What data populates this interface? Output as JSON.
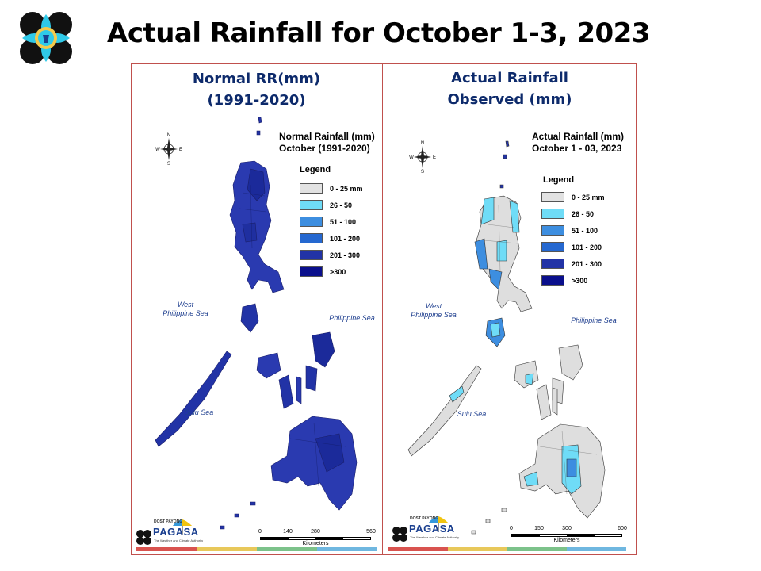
{
  "slide": {
    "title": "Actual Rainfall for October 1-3, 2023"
  },
  "headers": {
    "left": [
      "Normal RR(mm)",
      "(1991-2020)"
    ],
    "right": [
      "Actual Rainfall",
      "Observed (mm)"
    ]
  },
  "maps": [
    {
      "title_lines": [
        "Normal Rainfall (mm)",
        "October (1991-2020)"
      ],
      "legend_title": "Legend",
      "legend": [
        {
          "label": "0 - 25 mm",
          "color": "#e2e2e2"
        },
        {
          "label": "26 - 50",
          "color": "#6fdcf7"
        },
        {
          "label": "51 - 100",
          "color": "#3d8ee0"
        },
        {
          "label": "101 - 200",
          "color": "#2568d0"
        },
        {
          "label": "201 - 300",
          "color": "#2233a6"
        },
        {
          "label": ">300",
          "color": "#0a0f8c"
        }
      ],
      "seas": {
        "west": [
          "West",
          "Philippine Sea"
        ],
        "east": "Philippine Sea",
        "sulu": "Sulu Sea"
      },
      "compass": {
        "n": "N",
        "s": "S",
        "e": "E",
        "w": "W"
      },
      "scale": {
        "ticks": [
          "0",
          "140",
          "280",
          "560"
        ],
        "unit": "Kilometers"
      },
      "brand": "PAGASA",
      "brand_small": "DOST  PAYONG",
      "brand_tag": "The Weather and Climate Authority",
      "fill": "dark"
    },
    {
      "title_lines": [
        "Actual Rainfall (mm)",
        "October 1 - 03, 2023"
      ],
      "legend_title": "Legend",
      "legend": [
        {
          "label": "0 - 25 mm",
          "color": "#e2e2e2"
        },
        {
          "label": "26 - 50",
          "color": "#6fdcf7"
        },
        {
          "label": "51 - 100",
          "color": "#3d8ee0"
        },
        {
          "label": "101 - 200",
          "color": "#2568d0"
        },
        {
          "label": "201 - 300",
          "color": "#2233a6"
        },
        {
          "label": ">300",
          "color": "#0a0f8c"
        }
      ],
      "seas": {
        "west": [
          "West",
          "Philippine Sea"
        ],
        "east": "Philippine Sea",
        "sulu": "Sulu Sea"
      },
      "compass": {
        "n": "N",
        "s": "S",
        "e": "E",
        "w": "W"
      },
      "scale": {
        "ticks": [
          "0",
          "150",
          "300",
          "600"
        ],
        "unit": "Kilometers"
      },
      "brand": "PAGASA",
      "brand_small": "DOST  PAYONG",
      "brand_tag": "The Weather and Climate Authority",
      "fill": "light"
    }
  ],
  "stripe_colors": [
    "#d9534f",
    "#e8c85a",
    "#7cc28a",
    "#6fb7e0"
  ]
}
